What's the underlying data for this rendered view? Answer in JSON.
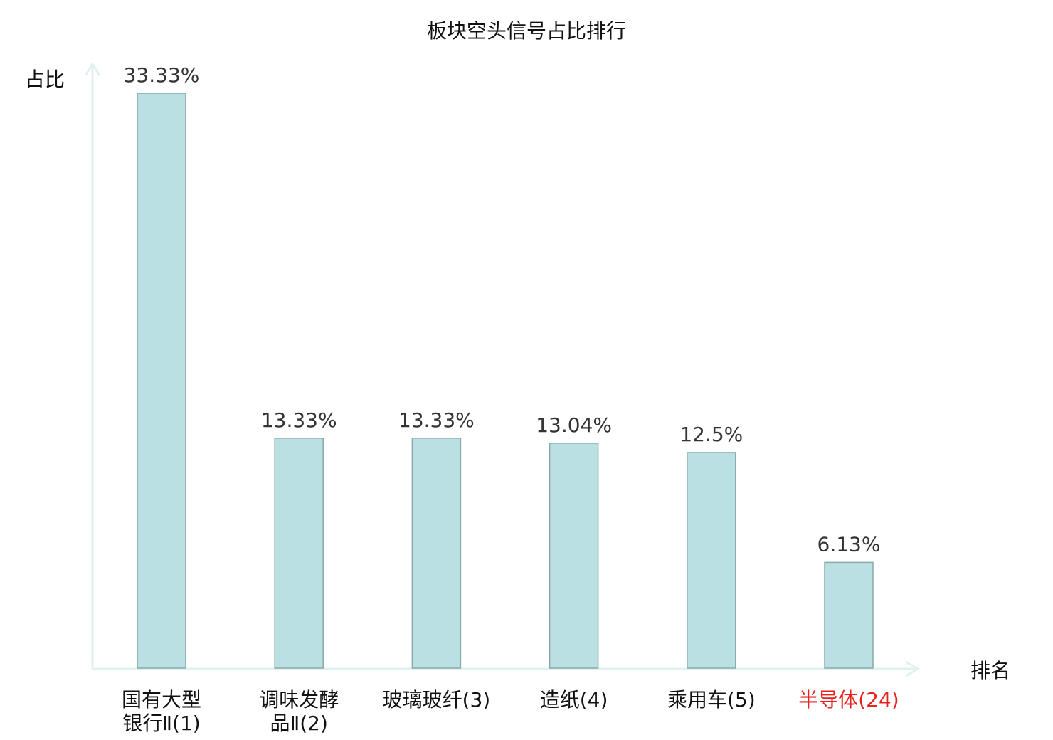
{
  "chart_data": {
    "type": "bar",
    "title": "板块空头信号占比排行",
    "ylabel": "占比",
    "xlabel": "排名",
    "ylim": [
      0,
      33.33
    ],
    "grid": false,
    "categories": [
      {
        "lines": [
          "国有大型",
          "银行Ⅱ(1)"
        ],
        "highlight": false
      },
      {
        "lines": [
          "调味发酵",
          "品Ⅱ(2)"
        ],
        "highlight": false
      },
      {
        "lines": [
          "玻璃玻纤(3)"
        ],
        "highlight": false
      },
      {
        "lines": [
          "造纸(4)"
        ],
        "highlight": false
      },
      {
        "lines": [
          "乘用车(5)"
        ],
        "highlight": false
      },
      {
        "lines": [
          "半导体(24)"
        ],
        "highlight": true
      }
    ],
    "values": [
      33.33,
      13.33,
      13.33,
      13.04,
      12.5,
      6.13
    ],
    "value_labels": [
      "33.33%",
      "13.33%",
      "13.33%",
      "13.04%",
      "12.5%",
      "6.13%"
    ],
    "colors": {
      "bar_fill": "#bbe0e3",
      "bar_stroke": "#8aa8a9",
      "axis": "#dff2ef",
      "highlight": "#e8211d",
      "text": "#111111",
      "value_text": "#333333"
    }
  }
}
